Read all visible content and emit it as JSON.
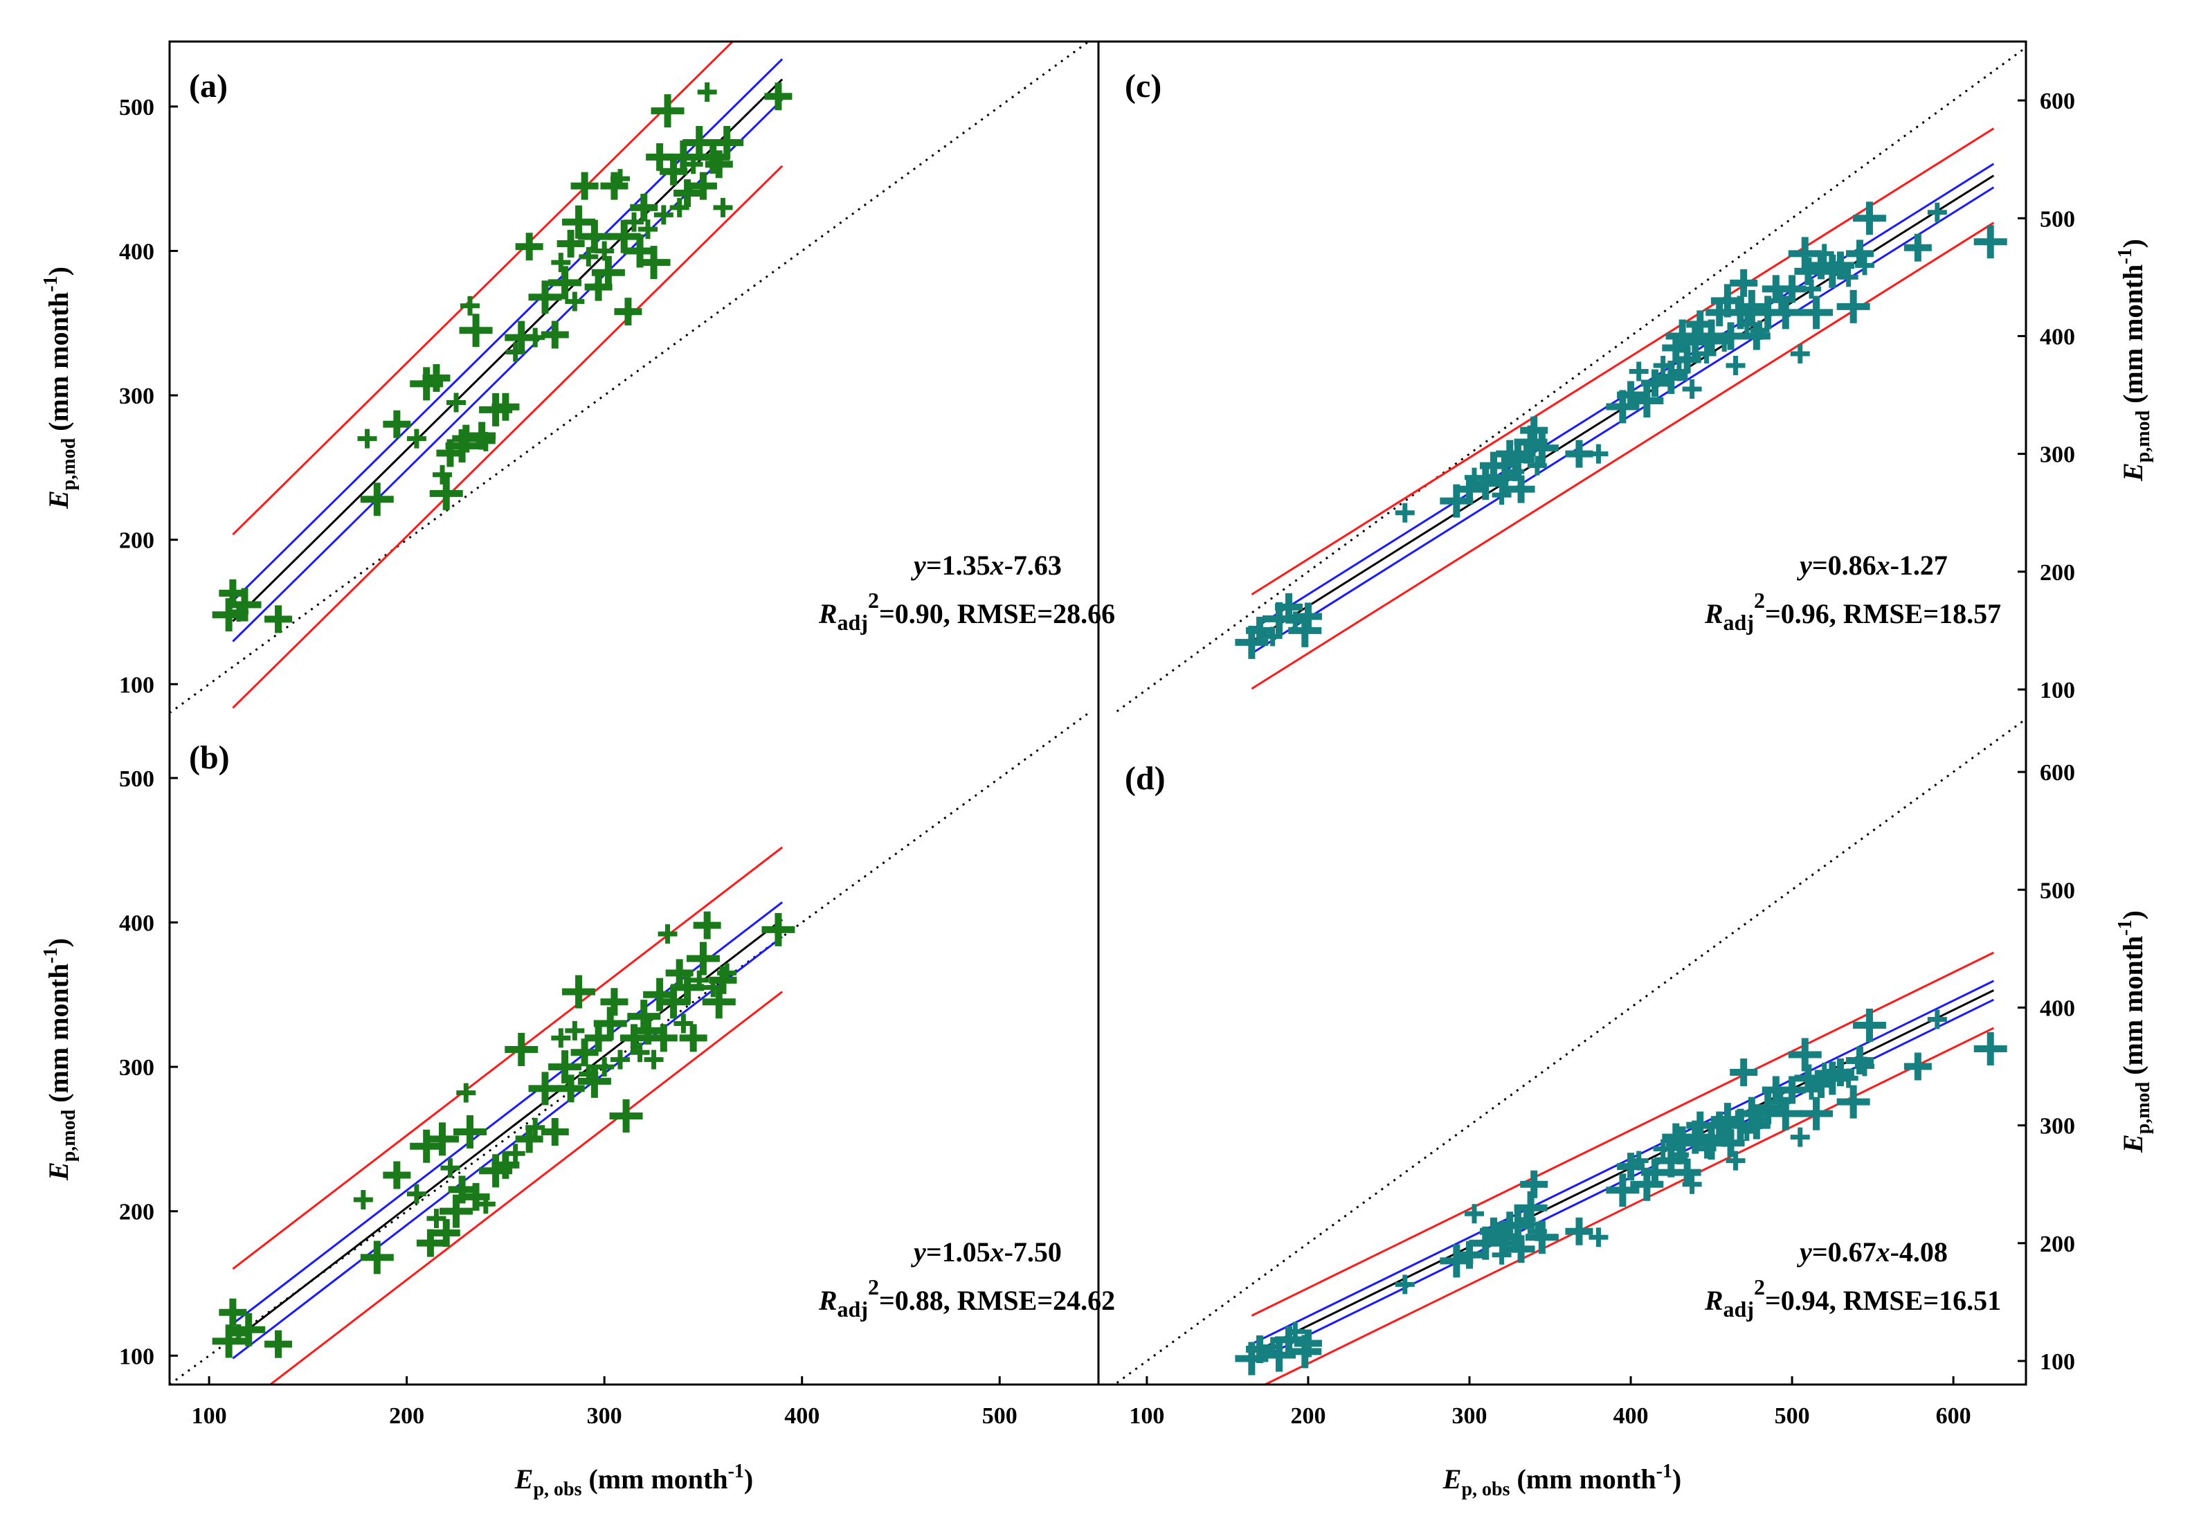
{
  "figure": {
    "x_axis_label": {
      "main": "E",
      "sub": "p, obs",
      "rest": " (mm month",
      "sup": "-1",
      "end": ")"
    },
    "y_axis_label": {
      "main": "E",
      "sub": "p,mod",
      "rest": " (mm month",
      "sup": "-1",
      "end": ")"
    }
  },
  "colors": {
    "green_marker": "#1a7a1a",
    "teal_marker": "#167f7f",
    "red": "#ff1a1a",
    "blue": "#1a1aff",
    "black": "#000000"
  },
  "chart_data": [
    {
      "panel": "a",
      "label": "(a)",
      "type": "scatter",
      "xlim": [
        80,
        550
      ],
      "ylim": [
        80,
        545
      ],
      "x_ticks": [],
      "y_ticks": [
        100,
        200,
        300,
        400,
        500
      ],
      "y_axis_side": "left",
      "slope": 1.35,
      "intercept": -7.63,
      "equation": {
        "y": "y",
        "eq": "=1.35",
        "x": "x",
        "rest": "-7.63"
      },
      "stats": {
        "r": "R",
        "sub": "adj",
        "sup": "2",
        "rest": "=0.90, RMSE=28.66"
      },
      "fit_range": [
        112,
        390
      ],
      "ci_band": 14,
      "pred_band": 60,
      "marker_color": "green",
      "points": [
        [
          110,
          148
        ],
        [
          112,
          163
        ],
        [
          115,
          150
        ],
        [
          118,
          155
        ],
        [
          135,
          145
        ],
        [
          180,
          270
        ],
        [
          185,
          228
        ],
        [
          195,
          280
        ],
        [
          205,
          270
        ],
        [
          210,
          308
        ],
        [
          215,
          312
        ],
        [
          218,
          245
        ],
        [
          220,
          232
        ],
        [
          222,
          260
        ],
        [
          225,
          295
        ],
        [
          228,
          265
        ],
        [
          230,
          270
        ],
        [
          232,
          362
        ],
        [
          235,
          345
        ],
        [
          238,
          272
        ],
        [
          240,
          268
        ],
        [
          245,
          290
        ],
        [
          250,
          292
        ],
        [
          255,
          330
        ],
        [
          258,
          340
        ],
        [
          262,
          403
        ],
        [
          265,
          340
        ],
        [
          270,
          368
        ],
        [
          275,
          342
        ],
        [
          278,
          392
        ],
        [
          280,
          378
        ],
        [
          283,
          405
        ],
        [
          285,
          365
        ],
        [
          287,
          420
        ],
        [
          290,
          445
        ],
        [
          292,
          396
        ],
        [
          295,
          410
        ],
        [
          297,
          375
        ],
        [
          300,
          400
        ],
        [
          302,
          385
        ],
        [
          305,
          445
        ],
        [
          308,
          450
        ],
        [
          310,
          410
        ],
        [
          312,
          358
        ],
        [
          315,
          420
        ],
        [
          318,
          400
        ],
        [
          320,
          430
        ],
        [
          322,
          415
        ],
        [
          325,
          392
        ],
        [
          328,
          465
        ],
        [
          330,
          425
        ],
        [
          332,
          497
        ],
        [
          335,
          455
        ],
        [
          338,
          430
        ],
        [
          340,
          465
        ],
        [
          342,
          440
        ],
        [
          345,
          460
        ],
        [
          348,
          475
        ],
        [
          350,
          445
        ],
        [
          352,
          510
        ],
        [
          355,
          465
        ],
        [
          358,
          460
        ],
        [
          360,
          430
        ],
        [
          362,
          475
        ],
        [
          388,
          507
        ]
      ]
    },
    {
      "panel": "b",
      "label": "(b)",
      "type": "scatter",
      "xlim": [
        80,
        550
      ],
      "ylim": [
        80,
        545
      ],
      "x_ticks": [
        100,
        200,
        300,
        400,
        500
      ],
      "y_ticks": [
        100,
        200,
        300,
        400,
        500
      ],
      "y_axis_side": "left",
      "slope": 1.05,
      "intercept": -7.5,
      "equation": {
        "y": "y",
        "eq": "=1.05",
        "x": "x",
        "rest": "-7.50"
      },
      "stats": {
        "r": "R",
        "sub": "adj",
        "sup": "2",
        "rest": "=0.88, RMSE=24.62"
      },
      "fit_range": [
        112,
        390
      ],
      "ci_band": 12,
      "pred_band": 50,
      "marker_color": "green",
      "points": [
        [
          110,
          110
        ],
        [
          112,
          130
        ],
        [
          115,
          115
        ],
        [
          120,
          118
        ],
        [
          135,
          108
        ],
        [
          178,
          208
        ],
        [
          185,
          168
        ],
        [
          195,
          225
        ],
        [
          205,
          212
        ],
        [
          210,
          245
        ],
        [
          212,
          178
        ],
        [
          215,
          195
        ],
        [
          218,
          250
        ],
        [
          220,
          185
        ],
        [
          222,
          230
        ],
        [
          225,
          200
        ],
        [
          228,
          215
        ],
        [
          230,
          282
        ],
        [
          232,
          255
        ],
        [
          235,
          210
        ],
        [
          240,
          205
        ],
        [
          245,
          228
        ],
        [
          250,
          232
        ],
        [
          255,
          240
        ],
        [
          258,
          312
        ],
        [
          262,
          250
        ],
        [
          265,
          258
        ],
        [
          270,
          285
        ],
        [
          275,
          255
        ],
        [
          278,
          320
        ],
        [
          280,
          300
        ],
        [
          283,
          285
        ],
        [
          285,
          325
        ],
        [
          287,
          352
        ],
        [
          290,
          310
        ],
        [
          292,
          295
        ],
        [
          295,
          290
        ],
        [
          297,
          320
        ],
        [
          300,
          300
        ],
        [
          303,
          330
        ],
        [
          305,
          345
        ],
        [
          308,
          305
        ],
        [
          311,
          266
        ],
        [
          315,
          320
        ],
        [
          318,
          310
        ],
        [
          320,
          335
        ],
        [
          322,
          325
        ],
        [
          325,
          305
        ],
        [
          328,
          350
        ],
        [
          330,
          320
        ],
        [
          332,
          392
        ],
        [
          335,
          345
        ],
        [
          338,
          365
        ],
        [
          340,
          330
        ],
        [
          342,
          355
        ],
        [
          345,
          320
        ],
        [
          348,
          360
        ],
        [
          350,
          375
        ],
        [
          352,
          398
        ],
        [
          355,
          355
        ],
        [
          358,
          345
        ],
        [
          360,
          360
        ],
        [
          362,
          365
        ],
        [
          388,
          395
        ]
      ]
    },
    {
      "panel": "c",
      "label": "(c)",
      "type": "scatter",
      "xlim": [
        70,
        645
      ],
      "ylim": [
        80,
        650
      ],
      "x_ticks": [],
      "y_ticks": [
        100,
        200,
        300,
        400,
        500,
        600
      ],
      "y_axis_side": "right",
      "slope": 0.86,
      "intercept": -1.27,
      "equation": {
        "y": "y",
        "eq": "=0.86",
        "x": "x",
        "rest": "-1.27"
      },
      "stats": {
        "r": "R",
        "sub": "adj",
        "sup": "2",
        "rest": "=0.96, RMSE=18.57"
      },
      "fit_range": [
        165,
        625
      ],
      "ci_band": 10,
      "pred_band": 40,
      "marker_color": "teal",
      "points": [
        [
          165,
          140
        ],
        [
          170,
          150
        ],
        [
          178,
          145
        ],
        [
          182,
          160
        ],
        [
          188,
          170
        ],
        [
          192,
          158
        ],
        [
          198,
          150
        ],
        [
          200,
          162
        ],
        [
          260,
          250
        ],
        [
          292,
          260
        ],
        [
          300,
          270
        ],
        [
          303,
          280
        ],
        [
          310,
          275
        ],
        [
          315,
          290
        ],
        [
          320,
          265
        ],
        [
          322,
          280
        ],
        [
          325,
          300
        ],
        [
          328,
          285
        ],
        [
          330,
          295
        ],
        [
          332,
          270
        ],
        [
          335,
          300
        ],
        [
          338,
          310
        ],
        [
          340,
          320
        ],
        [
          342,
          290
        ],
        [
          345,
          305
        ],
        [
          368,
          300
        ],
        [
          380,
          300
        ],
        [
          395,
          340
        ],
        [
          400,
          350
        ],
        [
          405,
          370
        ],
        [
          410,
          345
        ],
        [
          415,
          360
        ],
        [
          420,
          375
        ],
        [
          425,
          365
        ],
        [
          428,
          390
        ],
        [
          430,
          370
        ],
        [
          432,
          400
        ],
        [
          435,
          380
        ],
        [
          438,
          355
        ],
        [
          440,
          395
        ],
        [
          443,
          410
        ],
        [
          447,
          385
        ],
        [
          450,
          400
        ],
        [
          455,
          420
        ],
        [
          458,
          395
        ],
        [
          460,
          430
        ],
        [
          462,
          400
        ],
        [
          465,
          375
        ],
        [
          468,
          420
        ],
        [
          470,
          445
        ],
        [
          472,
          410
        ],
        [
          475,
          425
        ],
        [
          478,
          400
        ],
        [
          480,
          405
        ],
        [
          485,
          420
        ],
        [
          490,
          440
        ],
        [
          493,
          430
        ],
        [
          496,
          420
        ],
        [
          500,
          440
        ],
        [
          505,
          385
        ],
        [
          508,
          470
        ],
        [
          510,
          455
        ],
        [
          512,
          440
        ],
        [
          515,
          420
        ],
        [
          518,
          460
        ],
        [
          520,
          470
        ],
        [
          525,
          455
        ],
        [
          530,
          460
        ],
        [
          535,
          450
        ],
        [
          538,
          425
        ],
        [
          542,
          470
        ],
        [
          545,
          460
        ],
        [
          548,
          500
        ],
        [
          578,
          475
        ],
        [
          590,
          505
        ],
        [
          623,
          480
        ]
      ]
    },
    {
      "panel": "d",
      "label": "(d)",
      "type": "scatter",
      "xlim": [
        70,
        645
      ],
      "ylim": [
        80,
        650
      ],
      "x_ticks": [
        100,
        200,
        300,
        400,
        500,
        600
      ],
      "y_ticks": [
        100,
        200,
        300,
        400,
        500,
        600
      ],
      "y_axis_side": "right",
      "slope": 0.67,
      "intercept": -4.08,
      "equation": {
        "y": "y",
        "eq": "=0.67",
        "x": "x",
        "rest": "-4.08"
      },
      "stats": {
        "r": "R",
        "sub": "adj",
        "sup": "2",
        "rest": "=0.94, RMSE=16.51"
      },
      "fit_range": [
        165,
        625
      ],
      "ci_band": 8,
      "pred_band": 32,
      "marker_color": "teal",
      "points": [
        [
          165,
          102
        ],
        [
          170,
          110
        ],
        [
          178,
          112
        ],
        [
          182,
          105
        ],
        [
          188,
          118
        ],
        [
          192,
          125
        ],
        [
          198,
          108
        ],
        [
          200,
          115
        ],
        [
          260,
          165
        ],
        [
          292,
          185
        ],
        [
          300,
          190
        ],
        [
          303,
          225
        ],
        [
          310,
          200
        ],
        [
          315,
          210
        ],
        [
          320,
          190
        ],
        [
          322,
          205
        ],
        [
          325,
          215
        ],
        [
          328,
          200
        ],
        [
          330,
          215
        ],
        [
          332,
          195
        ],
        [
          335,
          220
        ],
        [
          338,
          230
        ],
        [
          340,
          250
        ],
        [
          342,
          210
        ],
        [
          345,
          205
        ],
        [
          368,
          210
        ],
        [
          380,
          205
        ],
        [
          395,
          245
        ],
        [
          400,
          265
        ],
        [
          405,
          270
        ],
        [
          410,
          250
        ],
        [
          415,
          260
        ],
        [
          420,
          280
        ],
        [
          425,
          270
        ],
        [
          428,
          290
        ],
        [
          430,
          275
        ],
        [
          432,
          285
        ],
        [
          435,
          260
        ],
        [
          438,
          250
        ],
        [
          440,
          290
        ],
        [
          443,
          300
        ],
        [
          447,
          280
        ],
        [
          450,
          285
        ],
        [
          455,
          300
        ],
        [
          458,
          290
        ],
        [
          460,
          305
        ],
        [
          462,
          285
        ],
        [
          465,
          270
        ],
        [
          468,
          300
        ],
        [
          470,
          345
        ],
        [
          472,
          295
        ],
        [
          475,
          310
        ],
        [
          478,
          300
        ],
        [
          480,
          305
        ],
        [
          485,
          315
        ],
        [
          490,
          330
        ],
        [
          493,
          320
        ],
        [
          496,
          310
        ],
        [
          500,
          330
        ],
        [
          505,
          290
        ],
        [
          508,
          360
        ],
        [
          510,
          340
        ],
        [
          512,
          330
        ],
        [
          515,
          310
        ],
        [
          518,
          335
        ],
        [
          520,
          345
        ],
        [
          525,
          340
        ],
        [
          530,
          345
        ],
        [
          535,
          340
        ],
        [
          538,
          320
        ],
        [
          542,
          355
        ],
        [
          545,
          350
        ],
        [
          548,
          385
        ],
        [
          578,
          350
        ],
        [
          590,
          390
        ],
        [
          623,
          365
        ]
      ]
    }
  ]
}
